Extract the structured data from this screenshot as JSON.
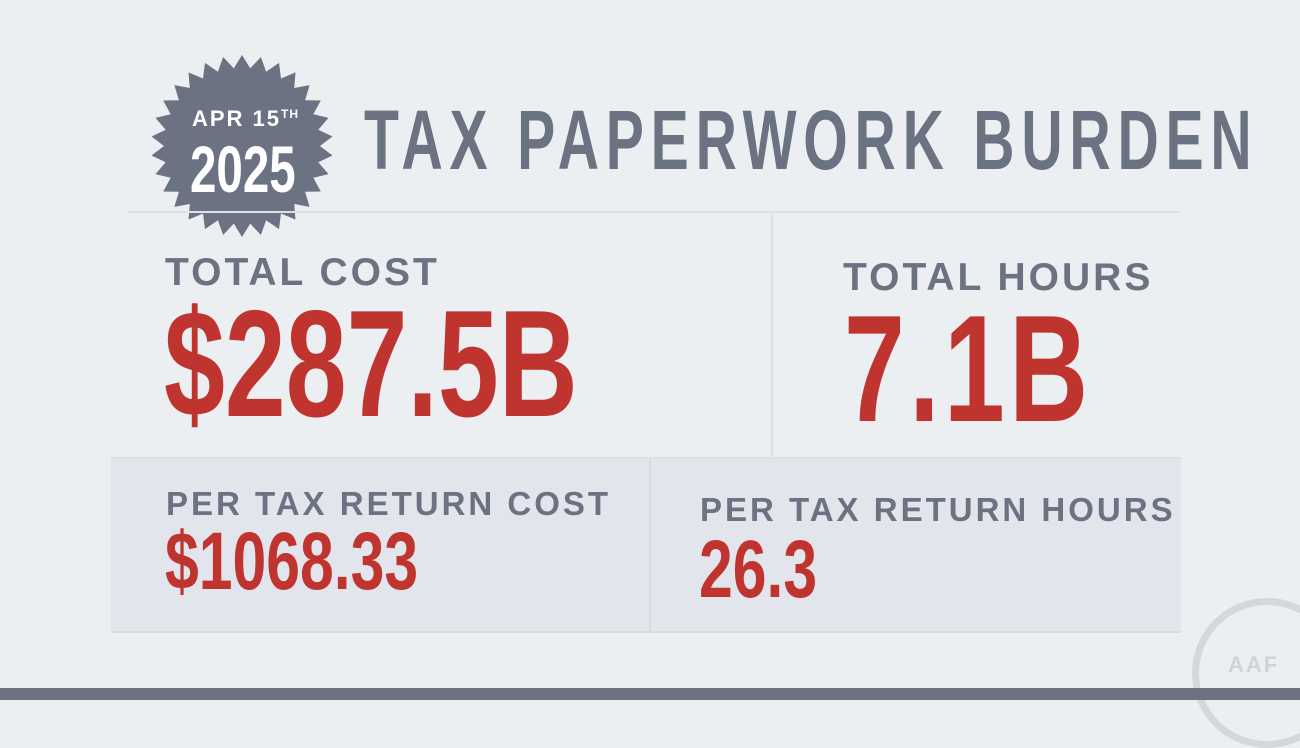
{
  "badge": {
    "date": "APR 15",
    "suffix": "TH",
    "year": "2025"
  },
  "title": "TAX PAPERWORK BURDEN",
  "total_cost": {
    "label": "TOTAL COST",
    "value": "$287.5B"
  },
  "total_hours": {
    "label": "TOTAL HOURS",
    "value": "7.1B"
  },
  "per_return_cost": {
    "label": "PER TAX RETURN COST",
    "value": "$1068.33"
  },
  "per_return_hours": {
    "label": "PER TAX RETURN HOURS",
    "value": "26.3"
  },
  "logo": {
    "text": "AAF"
  },
  "colors": {
    "accent": "#c0342f",
    "slate": "#6b7282",
    "background": "#eceff2",
    "panel": "#e2e5ec"
  }
}
